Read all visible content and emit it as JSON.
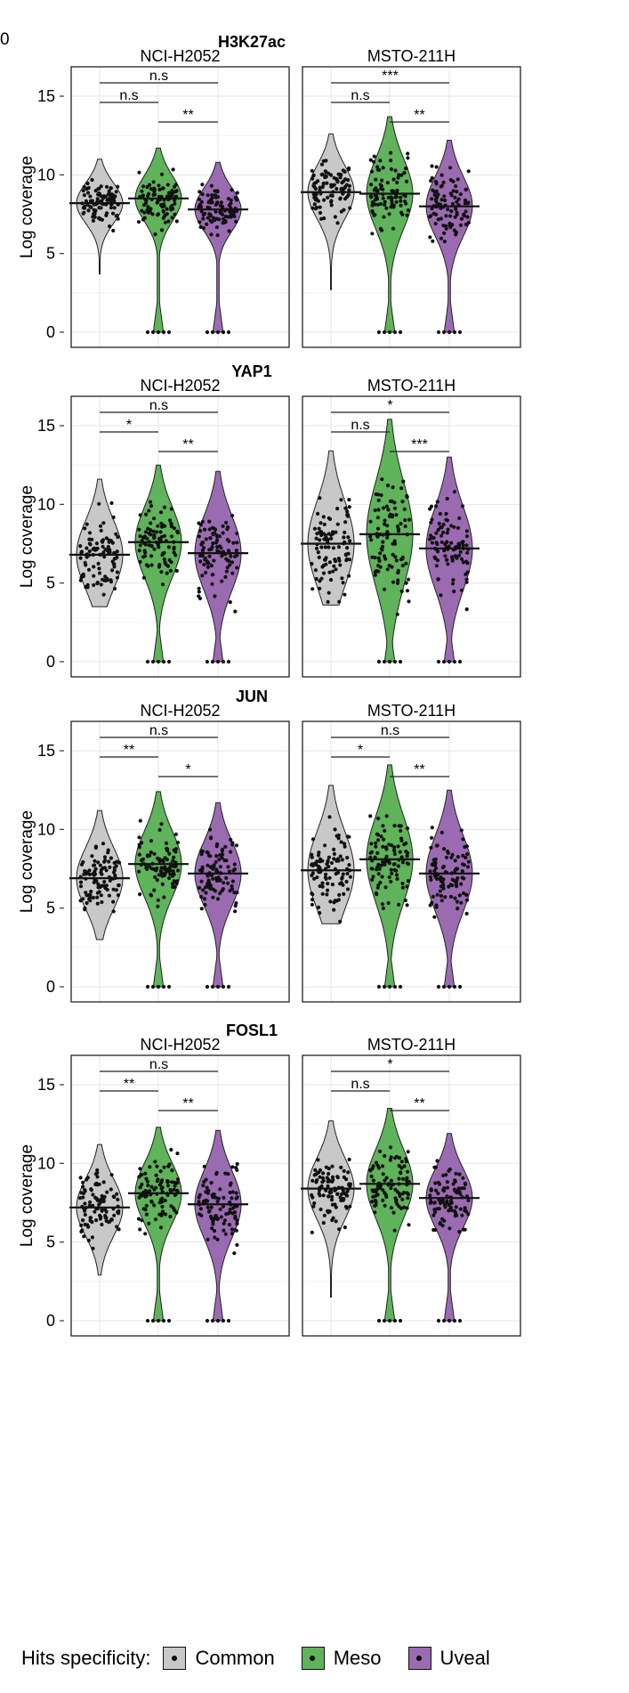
{
  "stray_label": "0",
  "chart_data": [
    {
      "type": "violin",
      "title": "H3K27ac",
      "ylabel": "Log coverage",
      "ylim": [
        0,
        15
      ],
      "yticks": [
        "0",
        "5",
        "10",
        "15"
      ],
      "groups": [
        "Common",
        "Meso",
        "Uveal"
      ],
      "panels": [
        {
          "name": "NCI-H2052",
          "medians": [
            8.2,
            8.5,
            7.8
          ],
          "max": [
            11.0,
            11.7,
            10.8
          ],
          "min": [
            3.7,
            0.0,
            0.0
          ],
          "significance": [
            {
              "from": "Common",
              "to": "Uveal",
              "label": "n.s"
            },
            {
              "from": "Common",
              "to": "Meso",
              "label": "n.s"
            },
            {
              "from": "Meso",
              "to": "Uveal",
              "label": "**"
            }
          ]
        },
        {
          "name": "MSTO-211H",
          "medians": [
            8.9,
            8.8,
            8.0
          ],
          "max": [
            12.6,
            13.7,
            12.2
          ],
          "min": [
            2.7,
            0.0,
            0.0
          ],
          "significance": [
            {
              "from": "Common",
              "to": "Uveal",
              "label": "***"
            },
            {
              "from": "Common",
              "to": "Meso",
              "label": "n.s"
            },
            {
              "from": "Meso",
              "to": "Uveal",
              "label": "**"
            }
          ]
        }
      ]
    },
    {
      "type": "violin",
      "title": "YAP1",
      "ylabel": "Log coverage",
      "ylim": [
        0,
        15
      ],
      "yticks": [
        "0",
        "5",
        "10",
        "15"
      ],
      "groups": [
        "Common",
        "Meso",
        "Uveal"
      ],
      "panels": [
        {
          "name": "NCI-H2052",
          "medians": [
            6.8,
            7.6,
            6.9
          ],
          "max": [
            11.6,
            12.5,
            12.1
          ],
          "min": [
            3.5,
            0.0,
            0.0
          ],
          "significance": [
            {
              "from": "Common",
              "to": "Uveal",
              "label": "n.s"
            },
            {
              "from": "Common",
              "to": "Meso",
              "label": "*"
            },
            {
              "from": "Meso",
              "to": "Uveal",
              "label": "**"
            }
          ]
        },
        {
          "name": "MSTO-211H",
          "medians": [
            7.5,
            8.1,
            7.2
          ],
          "max": [
            13.4,
            15.4,
            13.0
          ],
          "min": [
            3.6,
            0.0,
            0.0
          ],
          "significance": [
            {
              "from": "Common",
              "to": "Uveal",
              "label": "*"
            },
            {
              "from": "Common",
              "to": "Meso",
              "label": "n.s"
            },
            {
              "from": "Meso",
              "to": "Uveal",
              "label": "***"
            }
          ]
        }
      ]
    },
    {
      "type": "violin",
      "title": "JUN",
      "ylabel": "Log coverage",
      "ylim": [
        0,
        15
      ],
      "yticks": [
        "0",
        "5",
        "10",
        "15"
      ],
      "groups": [
        "Common",
        "Meso",
        "Uveal"
      ],
      "panels": [
        {
          "name": "NCI-H2052",
          "medians": [
            6.9,
            7.8,
            7.2
          ],
          "max": [
            11.2,
            12.4,
            11.7
          ],
          "min": [
            3.0,
            0.0,
            0.0
          ],
          "significance": [
            {
              "from": "Common",
              "to": "Uveal",
              "label": "n.s"
            },
            {
              "from": "Common",
              "to": "Meso",
              "label": "**"
            },
            {
              "from": "Meso",
              "to": "Uveal",
              "label": "*"
            }
          ]
        },
        {
          "name": "MSTO-211H",
          "medians": [
            7.4,
            8.1,
            7.2
          ],
          "max": [
            12.8,
            14.1,
            12.5
          ],
          "min": [
            4.0,
            0.0,
            0.0
          ],
          "significance": [
            {
              "from": "Common",
              "to": "Uveal",
              "label": "n.s"
            },
            {
              "from": "Common",
              "to": "Meso",
              "label": "*"
            },
            {
              "from": "Meso",
              "to": "Uveal",
              "label": "**"
            }
          ]
        }
      ]
    },
    {
      "type": "violin",
      "title": "FOSL1",
      "ylabel": "Log coverage",
      "ylim": [
        0,
        15
      ],
      "yticks": [
        "0",
        "5",
        "10",
        "15"
      ],
      "groups": [
        "Common",
        "Meso",
        "Uveal"
      ],
      "panels": [
        {
          "name": "NCI-H2052",
          "medians": [
            7.2,
            8.1,
            7.4
          ],
          "max": [
            11.2,
            12.3,
            12.1
          ],
          "min": [
            2.9,
            0.0,
            0.0
          ],
          "significance": [
            {
              "from": "Common",
              "to": "Uveal",
              "label": "n.s"
            },
            {
              "from": "Common",
              "to": "Meso",
              "label": "**"
            },
            {
              "from": "Meso",
              "to": "Uveal",
              "label": "**"
            }
          ]
        },
        {
          "name": "MSTO-211H",
          "medians": [
            8.4,
            8.7,
            7.8
          ],
          "max": [
            12.7,
            13.5,
            11.9
          ],
          "min": [
            1.5,
            0.0,
            0.0
          ],
          "significance": [
            {
              "from": "Common",
              "to": "Uveal",
              "label": "*"
            },
            {
              "from": "Common",
              "to": "Meso",
              "label": "n.s"
            },
            {
              "from": "Meso",
              "to": "Uveal",
              "label": "**"
            }
          ]
        }
      ]
    }
  ],
  "legend": {
    "title": "Hits specificity:",
    "items": [
      {
        "label": "Common",
        "color": "#c8c8c8"
      },
      {
        "label": "Meso",
        "color": "#5fb35a"
      },
      {
        "label": "Uveal",
        "color": "#9b6bb2"
      }
    ]
  }
}
